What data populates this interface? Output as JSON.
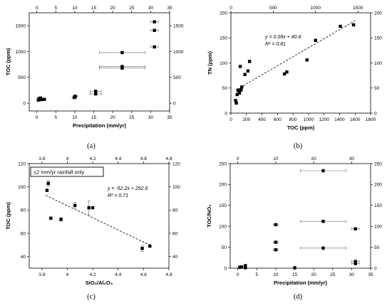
{
  "figure": {
    "background": "#ffffff",
    "marker_color": "#000000",
    "errorbar_color": "#666666"
  },
  "chart_data": [
    {
      "panel_label": "(a)",
      "type": "scatter",
      "xlabel": "Precipitation (mm/yr)",
      "ylabel": "TOC (ppm)",
      "xlim": [
        -2,
        35
      ],
      "ylim": [
        -150,
        1750
      ],
      "xticks": [
        0,
        5,
        10,
        15,
        20,
        25,
        30,
        35
      ],
      "yticks": [
        0,
        500,
        1000,
        1500
      ],
      "yticks_right": [
        0,
        500,
        1000,
        1500
      ],
      "xticks_top": [
        0,
        5,
        10,
        15,
        20,
        25,
        30,
        35
      ],
      "points": [
        {
          "x": 0.4,
          "y": 60
        },
        {
          "x": 0.6,
          "y": 90
        },
        {
          "x": 1.0,
          "y": 100
        },
        {
          "x": 1.2,
          "y": 70
        },
        {
          "x": 2.0,
          "y": 75
        },
        {
          "x": 9.9,
          "y": 110,
          "xerr": 0.6
        },
        {
          "x": 10.1,
          "y": 135,
          "xerr": 0.6
        },
        {
          "x": 15.5,
          "y": 180,
          "xerr": 1.5
        },
        {
          "x": 15.5,
          "y": 230,
          "xerr": 1.5
        },
        {
          "x": 22.5,
          "y": 980,
          "xerr": 6
        },
        {
          "x": 22.5,
          "y": 680,
          "xerr": 6
        },
        {
          "x": 22.5,
          "y": 710,
          "xerr": 6
        },
        {
          "x": 31.0,
          "y": 1575,
          "xerr": 1.0
        },
        {
          "x": 31.0,
          "y": 1410,
          "xerr": 1.0
        },
        {
          "x": 31.0,
          "y": 1090,
          "xerr": 1.0
        }
      ]
    },
    {
      "panel_label": "(b)",
      "type": "scatter",
      "xlabel": "TOC (ppm)",
      "ylabel": "TN (ppm)",
      "xlim": [
        0,
        1800
      ],
      "ylim": [
        0,
        200
      ],
      "xticks": [
        0,
        200,
        400,
        600,
        800,
        1000,
        1200,
        1400,
        1600,
        1800
      ],
      "yticks": [
        0,
        50,
        100,
        150,
        200
      ],
      "yticks_right": [
        0,
        50,
        100,
        150,
        200
      ],
      "xticks_top": [
        0,
        500,
        1000,
        1500
      ],
      "equation": "y = 0.09x + 40.4",
      "r2": "R² = 0.81",
      "trendline": {
        "slope": 0.09,
        "intercept": 40.4,
        "x_range": [
          75,
          1600
        ]
      },
      "points": [
        {
          "x": 60,
          "y": 25
        },
        {
          "x": 70,
          "y": 20
        },
        {
          "x": 80,
          "y": 37
        },
        {
          "x": 90,
          "y": 45
        },
        {
          "x": 100,
          "y": 46
        },
        {
          "x": 110,
          "y": 40
        },
        {
          "x": 120,
          "y": 93
        },
        {
          "x": 130,
          "y": 46
        },
        {
          "x": 140,
          "y": 52
        },
        {
          "x": 180,
          "y": 77
        },
        {
          "x": 220,
          "y": 84
        },
        {
          "x": 240,
          "y": 103
        },
        {
          "x": 690,
          "y": 78
        },
        {
          "x": 720,
          "y": 82
        },
        {
          "x": 980,
          "y": 106
        },
        {
          "x": 1090,
          "y": 145
        },
        {
          "x": 1410,
          "y": 173
        },
        {
          "x": 1580,
          "y": 176
        }
      ]
    },
    {
      "panel_label": "(c)",
      "type": "scatter",
      "xlabel": "SiO₂/Al₂O₃",
      "ylabel": "TOC (ppm)",
      "xlim": [
        3.7,
        4.8
      ],
      "ylim": [
        30,
        120
      ],
      "xticks": [
        3.8,
        4.0,
        4.2,
        4.4,
        4.6,
        4.8
      ],
      "yticks": [
        40,
        60,
        80,
        100,
        120
      ],
      "yticks_right": [
        40,
        60,
        80,
        100,
        120
      ],
      "xticks_top": [
        3.8,
        4.0,
        4.2,
        4.4,
        4.6,
        4.8
      ],
      "boxed_note": "≤2 mm/yr rainfall only",
      "equation": "y = -52.2x + 292.6",
      "r2": "R² = 0.71",
      "trendline": {
        "slope": -52.2,
        "intercept": 292.6,
        "x_range": [
          3.83,
          4.66
        ]
      },
      "points": [
        {
          "x": 3.84,
          "y": 97
        },
        {
          "x": 3.85,
          "y": 103,
          "yerr": 2.5
        },
        {
          "x": 3.87,
          "y": 73
        },
        {
          "x": 3.95,
          "y": 72,
          "yerr": 1.5
        },
        {
          "x": 4.06,
          "y": 84,
          "yerr": 2.5
        },
        {
          "x": 4.17,
          "y": 82,
          "yerr": 6
        },
        {
          "x": 4.2,
          "y": 82,
          "yerr": 1
        },
        {
          "x": 4.59,
          "y": 47,
          "yerr": 2.5
        },
        {
          "x": 4.65,
          "y": 49,
          "yerr": 1
        }
      ]
    },
    {
      "panel_label": "(d)",
      "type": "scatter",
      "xlabel": "Precipitation (mm/yr)",
      "ylabel": "TOC/NO₃",
      "xlim": [
        -2,
        35
      ],
      "ylim": [
        0,
        250
      ],
      "xticks": [
        0,
        5,
        10,
        15,
        20,
        25,
        30,
        35
      ],
      "yticks": [
        0,
        50,
        100,
        150,
        200,
        250
      ],
      "yticks_right": [
        0,
        50,
        100,
        150,
        200,
        250
      ],
      "xticks_top": [
        0,
        10,
        20,
        30
      ],
      "points": [
        {
          "x": 0.5,
          "y": 2
        },
        {
          "x": 1.0,
          "y": 3
        },
        {
          "x": 2.0,
          "y": 6
        },
        {
          "x": 2.0,
          "y": 1
        },
        {
          "x": 10.0,
          "y": 104,
          "xerr": 0.6
        },
        {
          "x": 10.0,
          "y": 62,
          "xerr": 0.6
        },
        {
          "x": 10.0,
          "y": 44,
          "xerr": 0.6
        },
        {
          "x": 15.0,
          "y": 1
        },
        {
          "x": 22.5,
          "y": 233,
          "xerr": 6
        },
        {
          "x": 22.5,
          "y": 112,
          "xerr": 6
        },
        {
          "x": 22.5,
          "y": 48,
          "xerr": 6
        },
        {
          "x": 31.0,
          "y": 94,
          "xerr": 1.0
        },
        {
          "x": 31.0,
          "y": 16,
          "xerr": 1.0
        },
        {
          "x": 31.0,
          "y": 11,
          "xerr": 1.0
        }
      ]
    }
  ]
}
